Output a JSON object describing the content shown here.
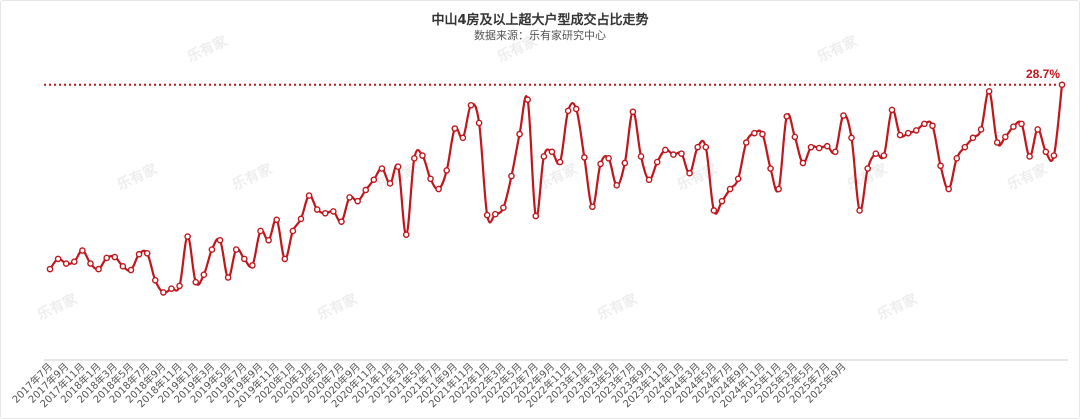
{
  "chart_data": {
    "type": "line",
    "title": "中山4房及以上超大户型成交占比走势",
    "subtitle": "数据来源：乐有家研究中心",
    "watermark": "乐有家",
    "xlabel": "",
    "ylabel": "",
    "ylim": [
      0,
      30.5
    ],
    "grid": false,
    "legend": "none",
    "line_color": "#c0161c",
    "reference_line": {
      "value": 28.7,
      "label": "28.7%",
      "style": "dotted"
    },
    "tick_labels": [
      "2017年7月",
      "2017年9月",
      "2017年11月",
      "2018年1月",
      "2018年3月",
      "2018年5月",
      "2018年7月",
      "2018年9月",
      "2018年11月",
      "2019年1月",
      "2019年3月",
      "2019年5月",
      "2019年7月",
      "2019年9月",
      "2019年11月",
      "2020年1月",
      "2020年3月",
      "2020年5月",
      "2020年7月",
      "2020年9月",
      "2020年11月",
      "2021年1月",
      "2021年3月",
      "2021年5月",
      "2021年7月",
      "2021年9月",
      "2021年11月",
      "2022年1月",
      "2022年3月",
      "2022年5月",
      "2022年7月",
      "2022年9月",
      "2022年11月",
      "2023年1月",
      "2023年3月",
      "2023年5月",
      "2023年7月",
      "2023年9月",
      "2023年11月",
      "2024年1月",
      "2024年3月",
      "2024年5月",
      "2024年7月",
      "2024年9月",
      "2024年11月",
      "2025年1月",
      "2025年3月",
      "2025年5月",
      "2025年7月",
      "2025年9月"
    ],
    "values": [
      8.9,
      10.0,
      9.5,
      9.7,
      10.9,
      9.5,
      8.9,
      10.1,
      10.2,
      9.2,
      8.8,
      10.5,
      10.6,
      7.7,
      6.4,
      6.8,
      7.1,
      12.4,
      7.5,
      8.3,
      11.0,
      12.0,
      8.0,
      11.0,
      10.0,
      9.3,
      13.0,
      12.0,
      14.2,
      10.0,
      13.0,
      14.3,
      16.8,
      15.3,
      14.9,
      15.1,
      14.0,
      16.6,
      16.2,
      17.4,
      18.5,
      19.7,
      18.1,
      19.9,
      12.6,
      20.8,
      21.1,
      18.6,
      17.5,
      19.5,
      24.0,
      23.0,
      26.5,
      24.6,
      14.7,
      14.8,
      15.5,
      18.9,
      23.4,
      27.1,
      14.6,
      21.0,
      21.5,
      20.4,
      25.9,
      26.1,
      20.9,
      15.6,
      20.2,
      20.8,
      17.9,
      20.3,
      25.8,
      21.0,
      18.5,
      20.4,
      21.7,
      21.2,
      21.3,
      19.2,
      22.0,
      22.0,
      15.2,
      16.2,
      17.5,
      18.6,
      22.5,
      23.5,
      23.4,
      19.7,
      17.5,
      25.3,
      23.1,
      20.3,
      22.0,
      21.9,
      22.1,
      21.5,
      25.4,
      23.0,
      15.2,
      19.7,
      21.3,
      21.1,
      26.0,
      23.3,
      23.5,
      23.8,
      24.5,
      24.3,
      20.0,
      17.5,
      20.8,
      22.0,
      23.0,
      23.9,
      28.0,
      22.5,
      23.1,
      24.2,
      24.5,
      21.0,
      23.9,
      21.5,
      21.1,
      28.7
    ]
  }
}
